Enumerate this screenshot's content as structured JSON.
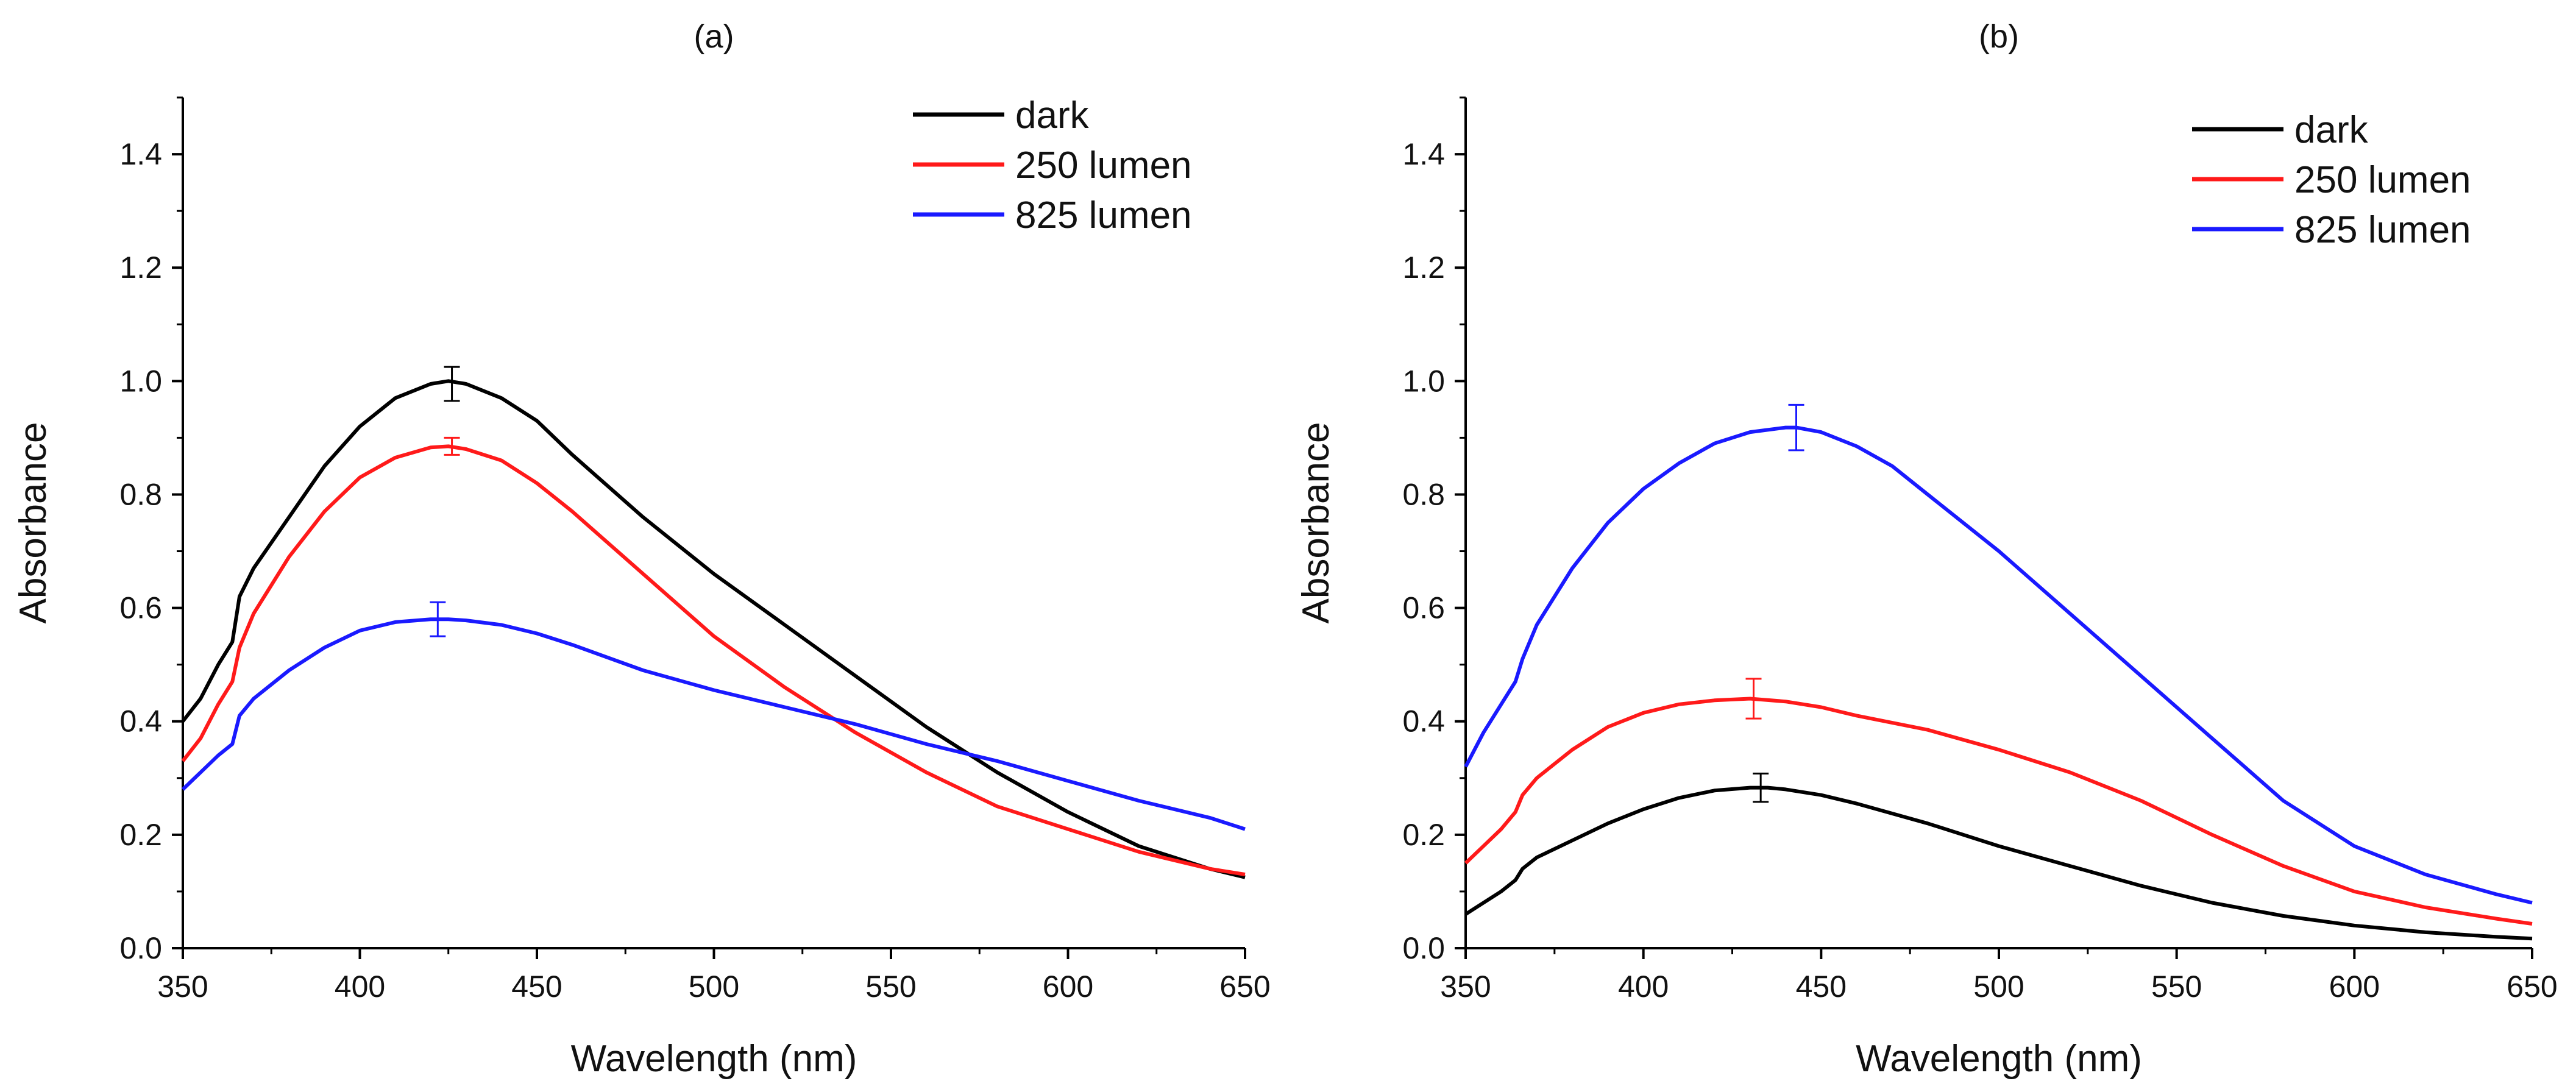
{
  "chart_data": [
    {
      "type": "line",
      "title": "(a)",
      "xlabel": "Wavelength (nm)",
      "ylabel": "Absorbance",
      "xlim": [
        350,
        650
      ],
      "ylim": [
        0,
        1.5
      ],
      "xticks": [
        350,
        400,
        450,
        500,
        550,
        600,
        650
      ],
      "yticks": [
        0.0,
        0.2,
        0.4,
        0.6,
        0.8,
        1.0,
        1.2,
        1.4
      ],
      "xtick_labels": [
        "350",
        "400",
        "450",
        "500",
        "550",
        "600",
        "650"
      ],
      "ytick_labels": [
        "0.0",
        "0.2",
        "0.4",
        "0.6",
        "0.8",
        "1.0",
        "1.2",
        "1.4"
      ],
      "legend_position": "top-right",
      "grid": false,
      "series": [
        {
          "name": "dark",
          "color": "#000000",
          "x": [
            350,
            355,
            360,
            364,
            366,
            370,
            380,
            390,
            400,
            410,
            420,
            425,
            430,
            440,
            450,
            460,
            480,
            500,
            520,
            540,
            560,
            580,
            600,
            620,
            640,
            650
          ],
          "y": [
            0.4,
            0.44,
            0.5,
            0.54,
            0.62,
            0.67,
            0.76,
            0.85,
            0.92,
            0.97,
            0.995,
            1.0,
            0.995,
            0.97,
            0.93,
            0.87,
            0.76,
            0.66,
            0.57,
            0.48,
            0.39,
            0.31,
            0.24,
            0.18,
            0.14,
            0.125
          ],
          "error_bar": {
            "x": 426,
            "y": 0.995,
            "err": 0.03
          }
        },
        {
          "name": "250 lumen",
          "color": "#ff1a1a",
          "x": [
            350,
            355,
            360,
            364,
            366,
            370,
            380,
            390,
            400,
            410,
            420,
            425,
            430,
            440,
            450,
            460,
            480,
            500,
            520,
            540,
            560,
            580,
            600,
            620,
            640,
            650
          ],
          "y": [
            0.33,
            0.37,
            0.43,
            0.47,
            0.53,
            0.59,
            0.69,
            0.77,
            0.83,
            0.865,
            0.883,
            0.885,
            0.88,
            0.86,
            0.82,
            0.77,
            0.66,
            0.55,
            0.46,
            0.38,
            0.31,
            0.25,
            0.21,
            0.17,
            0.14,
            0.13
          ],
          "error_bar": {
            "x": 426,
            "y": 0.885,
            "err": 0.015
          }
        },
        {
          "name": "825 lumen",
          "color": "#1a1aff",
          "x": [
            350,
            355,
            360,
            364,
            366,
            370,
            380,
            390,
            400,
            410,
            420,
            425,
            430,
            440,
            450,
            460,
            480,
            500,
            520,
            540,
            560,
            580,
            600,
            620,
            640,
            650
          ],
          "y": [
            0.28,
            0.31,
            0.34,
            0.36,
            0.41,
            0.44,
            0.49,
            0.53,
            0.56,
            0.575,
            0.58,
            0.58,
            0.578,
            0.57,
            0.555,
            0.535,
            0.49,
            0.455,
            0.425,
            0.395,
            0.36,
            0.33,
            0.295,
            0.26,
            0.23,
            0.21
          ],
          "error_bar": {
            "x": 422,
            "y": 0.58,
            "err": 0.03
          }
        }
      ]
    },
    {
      "type": "line",
      "title": "(b)",
      "xlabel": "Wavelength (nm)",
      "ylabel": "Absorbance",
      "xlim": [
        350,
        650
      ],
      "ylim": [
        0,
        1.5
      ],
      "xticks": [
        350,
        400,
        450,
        500,
        550,
        600,
        650
      ],
      "yticks": [
        0.0,
        0.2,
        0.4,
        0.6,
        0.8,
        1.0,
        1.2,
        1.4
      ],
      "xtick_labels": [
        "350",
        "400",
        "450",
        "500",
        "550",
        "600",
        "650"
      ],
      "ytick_labels": [
        "0.0",
        "0.2",
        "0.4",
        "0.6",
        "0.8",
        "1.0",
        "1.2",
        "1.4"
      ],
      "legend_position": "top-right",
      "grid": false,
      "series": [
        {
          "name": "dark",
          "color": "#000000",
          "x": [
            350,
            355,
            360,
            364,
            366,
            370,
            380,
            390,
            400,
            410,
            420,
            430,
            435,
            440,
            450,
            460,
            480,
            500,
            520,
            540,
            560,
            580,
            600,
            620,
            640,
            650
          ],
          "y": [
            0.06,
            0.08,
            0.1,
            0.12,
            0.14,
            0.16,
            0.19,
            0.22,
            0.245,
            0.265,
            0.278,
            0.283,
            0.283,
            0.28,
            0.27,
            0.255,
            0.22,
            0.18,
            0.145,
            0.11,
            0.08,
            0.057,
            0.04,
            0.028,
            0.02,
            0.017
          ],
          "error_bar": {
            "x": 433,
            "y": 0.283,
            "err": 0.025
          }
        },
        {
          "name": "250 lumen",
          "color": "#ff1a1a",
          "x": [
            350,
            355,
            360,
            364,
            366,
            370,
            380,
            390,
            400,
            410,
            420,
            430,
            440,
            450,
            460,
            480,
            500,
            520,
            540,
            560,
            580,
            600,
            620,
            640,
            650
          ],
          "y": [
            0.15,
            0.18,
            0.21,
            0.24,
            0.27,
            0.3,
            0.35,
            0.39,
            0.415,
            0.43,
            0.437,
            0.44,
            0.435,
            0.425,
            0.41,
            0.385,
            0.35,
            0.31,
            0.26,
            0.2,
            0.145,
            0.1,
            0.072,
            0.052,
            0.043
          ],
          "error_bar": {
            "x": 431,
            "y": 0.44,
            "err": 0.035
          }
        },
        {
          "name": "825 lumen",
          "color": "#1a1aff",
          "x": [
            350,
            355,
            360,
            364,
            366,
            370,
            380,
            390,
            400,
            410,
            420,
            430,
            440,
            443,
            450,
            460,
            470,
            480,
            500,
            520,
            540,
            560,
            580,
            600,
            620,
            640,
            650
          ],
          "y": [
            0.32,
            0.38,
            0.43,
            0.47,
            0.51,
            0.57,
            0.67,
            0.75,
            0.81,
            0.855,
            0.89,
            0.91,
            0.918,
            0.918,
            0.91,
            0.885,
            0.85,
            0.8,
            0.7,
            0.59,
            0.48,
            0.37,
            0.26,
            0.18,
            0.13,
            0.095,
            0.08
          ],
          "error_bar": {
            "x": 443,
            "y": 0.918,
            "err": 0.04
          }
        }
      ]
    }
  ]
}
